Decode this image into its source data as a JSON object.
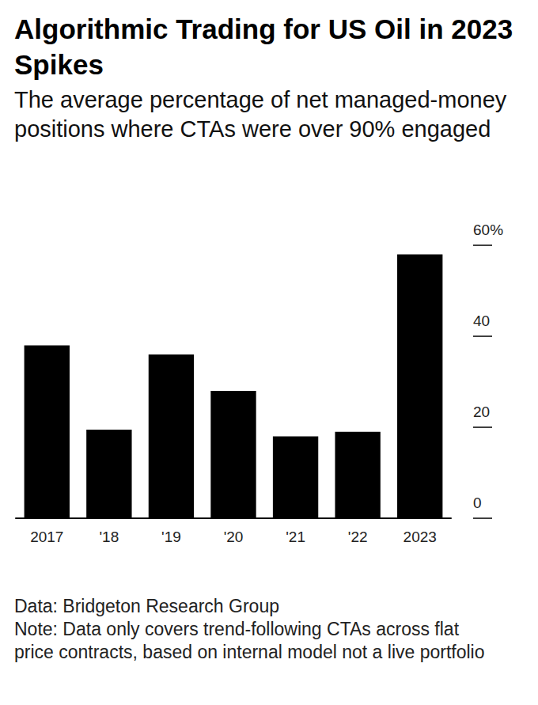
{
  "chart_data": {
    "type": "bar",
    "title": "Algorithmic Trading for US Oil in 2023 Spikes",
    "subtitle": "The average percentage of net managed-money positions where CTAs were over 90% engaged",
    "categories": [
      "2017",
      "'18",
      "'19",
      "'20",
      "'21",
      "'22",
      "2023"
    ],
    "values": [
      38,
      19.5,
      36,
      28,
      18,
      19,
      58
    ],
    "color": "#000000",
    "ylim": [
      0,
      60
    ],
    "yticks": [
      0,
      20,
      40,
      {
        "value": 60,
        "label": "60%"
      }
    ],
    "grid": false,
    "source": "Data: Bridgeton Research Group",
    "note": "Note: Data only covers trend-following CTAs across flat price contracts, based on internal model not a live portfolio"
  }
}
